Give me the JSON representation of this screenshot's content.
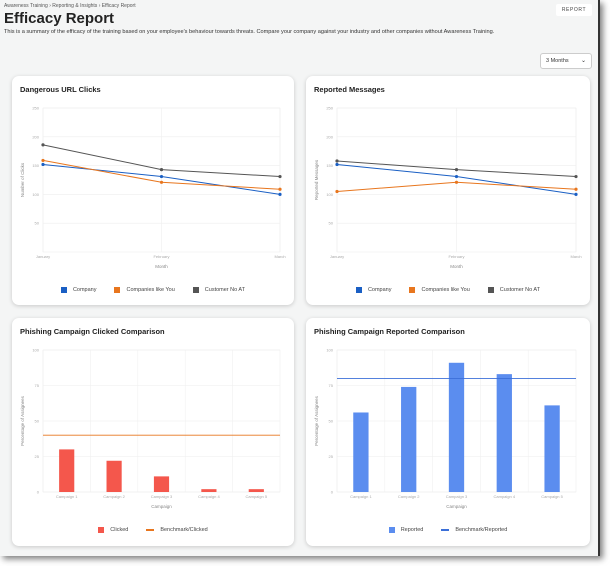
{
  "breadcrumb": [
    "Awareness Training",
    "Reporting & Insights",
    "Efficacy Report"
  ],
  "breadcrumb_sep": " › ",
  "title": "Efficacy Report",
  "description": "This is a summary of the efficacy of the training based on your employee's behaviour towards threats. Compare your company against your industry and other companies without Awareness Training.",
  "report_button": "REPORT",
  "period_select": {
    "value": "3 Months",
    "icon": "chevron-down-icon"
  },
  "colors": {
    "company": "#1a5fc4",
    "like_you": "#e8761e",
    "no_at": "#555555",
    "clicked": "#f4574c",
    "benchmark_clicked": "#e8761e",
    "reported": "#5b8def",
    "benchmark_reported": "#3b6fd8"
  },
  "chart_data": [
    {
      "type": "line",
      "title": "Dangerous URL Clicks",
      "xlabel": "Month",
      "ylabel": "Number of Clicks",
      "categories": [
        "January",
        "February",
        "March"
      ],
      "ylim": [
        0,
        250
      ],
      "yticks": [
        50,
        100,
        150,
        200,
        250
      ],
      "grid": true,
      "legend": "bottom",
      "series": [
        {
          "name": "Company",
          "values": [
            152,
            131,
            100
          ],
          "color": "#1a5fc4"
        },
        {
          "name": "Companies like You",
          "values": [
            159,
            121,
            109
          ],
          "color": "#e8761e"
        },
        {
          "name": "Customer No AT",
          "values": [
            186,
            143,
            131
          ],
          "color": "#555555"
        }
      ]
    },
    {
      "type": "line",
      "title": "Reported Messages",
      "xlabel": "Month",
      "ylabel": "Reported Messages",
      "categories": [
        "January",
        "February",
        "March"
      ],
      "ylim": [
        0,
        250
      ],
      "yticks": [
        50,
        100,
        150,
        200,
        250
      ],
      "grid": true,
      "legend": "bottom",
      "series": [
        {
          "name": "Company",
          "values": [
            152,
            131,
            100
          ],
          "color": "#1a5fc4"
        },
        {
          "name": "Companies like You",
          "values": [
            105,
            121,
            109
          ],
          "color": "#e8761e"
        },
        {
          "name": "Customer No AT",
          "values": [
            158,
            143,
            131
          ],
          "color": "#555555"
        }
      ]
    },
    {
      "type": "bar",
      "title": "Phishing Campaign Clicked Comparison",
      "xlabel": "Campaign",
      "ylabel": "Percentage of Assignees",
      "categories": [
        "Campaign 1",
        "Campaign 2",
        "Campaign 3",
        "Campaign 4",
        "Campaign 5"
      ],
      "ylim": [
        0,
        100
      ],
      "yticks": [
        0,
        25,
        50,
        75,
        100
      ],
      "grid": true,
      "legend": "bottom",
      "series": [
        {
          "name": "Clicked",
          "values": [
            30,
            22,
            11,
            2,
            2
          ],
          "color": "#f4574c"
        }
      ],
      "benchmark": {
        "name": "Benchmark/Clicked",
        "value": 40,
        "color": "#e8761e"
      }
    },
    {
      "type": "bar",
      "title": "Phishing Campaign Reported Comparison",
      "xlabel": "Campaign",
      "ylabel": "Percentage of Assignees",
      "categories": [
        "Campaign 1",
        "Campaign 2",
        "Campaign 3",
        "Campaign 4",
        "Campaign 5"
      ],
      "ylim": [
        0,
        100
      ],
      "yticks": [
        0,
        25,
        50,
        75,
        100
      ],
      "grid": true,
      "legend": "bottom",
      "series": [
        {
          "name": "Reported",
          "values": [
            56,
            74,
            91,
            83,
            61
          ],
          "color": "#5b8def"
        }
      ],
      "benchmark": {
        "name": "Benchmark/Reported",
        "value": 80,
        "color": "#3b6fd8"
      }
    }
  ]
}
